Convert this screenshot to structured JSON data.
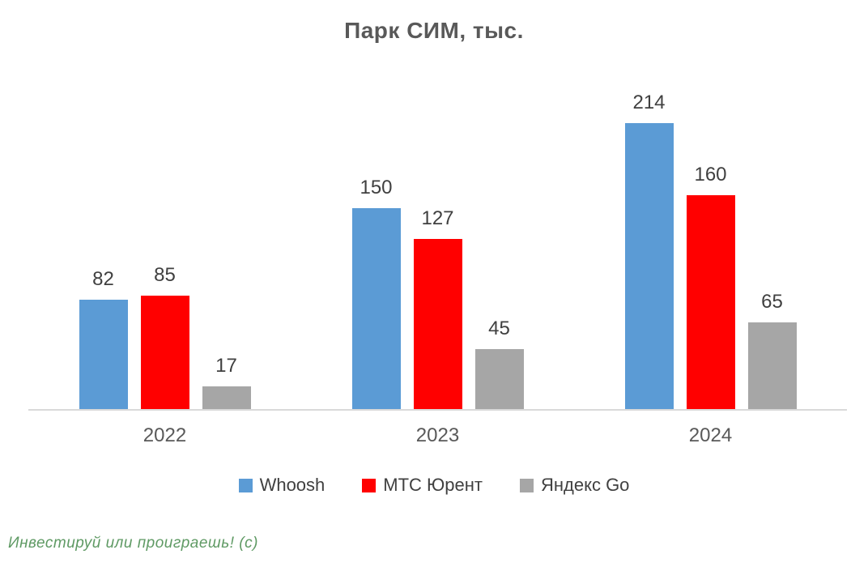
{
  "title": "Парк СИМ, тыс.",
  "watermark": "Инвестируй или проиграешь! (с)",
  "chart_data": {
    "type": "bar",
    "title": "Парк СИМ, тыс.",
    "categories": [
      "2022",
      "2023",
      "2024"
    ],
    "series": [
      {
        "name": "Whoosh",
        "color": "#5B9BD5",
        "values": [
          82,
          150,
          214
        ]
      },
      {
        "name": "МТС Юрент",
        "color": "#FF0000",
        "values": [
          85,
          127,
          160
        ]
      },
      {
        "name": "Яндекс Go",
        "color": "#A6A6A6",
        "values": [
          17,
          45,
          65
        ]
      }
    ],
    "xlabel": "",
    "ylabel": "",
    "ylim": [
      0,
      220
    ],
    "grid": false,
    "data_labels": true,
    "legend_position": "bottom",
    "axis_line_color": "#D9D9D9"
  },
  "colors": {
    "background": "#FFFFFF",
    "title_text": "#595959",
    "value_label_text": "#404040",
    "category_label_text": "#595959",
    "legend_text": "#404040",
    "axis_line": "#D9D9D9",
    "watermark_text": "#5F9A64"
  }
}
